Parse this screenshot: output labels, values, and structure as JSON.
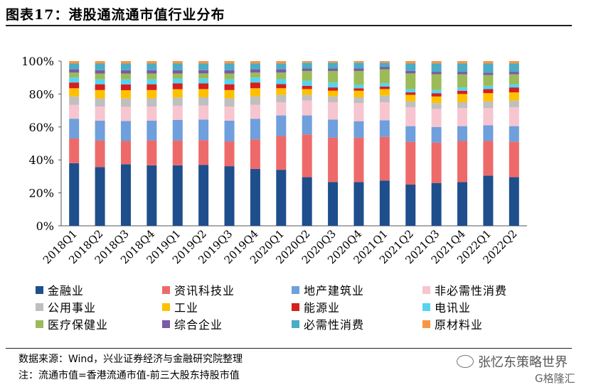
{
  "title": "图表17：港股通流通市值行业分布",
  "source": "数据来源：Wind，兴业证券经济与金融研究院整理",
  "note": "注：流通市值=香港流通市值-前三大股东持股市值",
  "watermark": "张忆东策略世界",
  "watermark_logo": "G格隆汇",
  "chart_data": {
    "type": "bar",
    "stacked": true,
    "percent": true,
    "categories": [
      "2018Q1",
      "2018Q2",
      "2018Q3",
      "2018Q4",
      "2019Q1",
      "2019Q2",
      "2019Q3",
      "2019Q4",
      "2020Q1",
      "2020Q2",
      "2020Q3",
      "2020Q4",
      "2021Q1",
      "2021Q2",
      "2021Q3",
      "2021Q4",
      "2022Q1",
      "2022Q2"
    ],
    "y_ticks": [
      "0%",
      "20%",
      "40%",
      "60%",
      "80%",
      "100%"
    ],
    "ylim": [
      0,
      100
    ],
    "grid": false,
    "legend_position": "bottom",
    "series": [
      {
        "name": "金融业",
        "color": "#1F4E8C",
        "values": [
          38,
          35.5,
          37,
          36.5,
          36.5,
          37,
          36,
          34.5,
          34,
          29.5,
          26.5,
          26.5,
          27.5,
          25,
          26,
          26.5,
          30.5,
          29.5
        ]
      },
      {
        "name": "资讯科技业",
        "color": "#EE6A6A",
        "values": [
          15,
          16,
          14,
          15,
          15,
          15,
          15,
          18,
          20.5,
          26,
          27,
          27,
          26.5,
          26,
          24.5,
          25,
          21,
          21.5
        ]
      },
      {
        "name": "地产建筑业",
        "color": "#6F9FDC",
        "values": [
          12,
          12,
          12,
          12,
          12.5,
          12.5,
          12.5,
          12.5,
          12.5,
          11.5,
          11,
          10,
          10,
          9.5,
          9.5,
          9,
          9.5,
          9.5
        ]
      },
      {
        "name": "非必需性消费",
        "color": "#F7C5CF",
        "values": [
          8.5,
          8.5,
          8.5,
          8.5,
          8.5,
          8.5,
          8.5,
          8.5,
          8,
          9,
          10.5,
          11,
          11,
          11.5,
          11,
          11,
          10.5,
          11.5
        ]
      },
      {
        "name": "公用事业",
        "color": "#BFBFBF",
        "values": [
          5,
          5,
          5,
          5,
          5,
          5,
          5,
          5,
          4.5,
          3.5,
          3.5,
          3.5,
          4,
          3.5,
          3.5,
          3.5,
          4,
          4
        ]
      },
      {
        "name": "工业",
        "color": "#FFC000",
        "values": [
          5,
          5,
          5,
          5,
          5,
          5,
          5,
          5,
          4,
          3.5,
          3.5,
          4,
          4,
          4,
          4,
          5,
          5,
          5
        ]
      },
      {
        "name": "能源业",
        "color": "#D42020",
        "values": [
          3.5,
          3.5,
          3.5,
          3.5,
          3.5,
          3.5,
          3.5,
          3.5,
          2.5,
          2,
          2,
          1.5,
          1.5,
          1.5,
          2,
          2,
          2.5,
          3
        ]
      },
      {
        "name": "电讯业",
        "color": "#55D4F0",
        "values": [
          3,
          3,
          3,
          3,
          3,
          3,
          3,
          3,
          3,
          3,
          3,
          2,
          2,
          2,
          2,
          2,
          2,
          2
        ]
      },
      {
        "name": "医疗保健业",
        "color": "#9BBB59",
        "values": [
          3,
          3.5,
          3.5,
          3.5,
          3,
          3,
          3.5,
          3,
          4,
          6,
          7,
          8.5,
          8.5,
          9.5,
          9.5,
          8,
          6.5,
          6
        ]
      },
      {
        "name": "综合企业",
        "color": "#7B5AA6",
        "values": [
          2,
          2,
          2,
          2,
          2,
          2,
          2,
          2,
          2,
          1.5,
          1.5,
          1.5,
          1.5,
          1.5,
          1.5,
          1.5,
          1.5,
          1.5
        ]
      },
      {
        "name": "必需性消费",
        "color": "#4BACC6",
        "values": [
          3.5,
          4,
          4,
          4,
          4,
          4,
          4,
          3.5,
          3.5,
          3.5,
          3.5,
          3.5,
          2.5,
          4.5,
          5,
          5,
          5.5,
          5
        ]
      },
      {
        "name": "原材料业",
        "color": "#F79646",
        "values": [
          1.5,
          1.5,
          1.5,
          1.5,
          1.5,
          1.5,
          1.5,
          1.5,
          1.5,
          1,
          1,
          1,
          1,
          1.5,
          1.5,
          1.5,
          1.5,
          1.5
        ]
      }
    ]
  }
}
